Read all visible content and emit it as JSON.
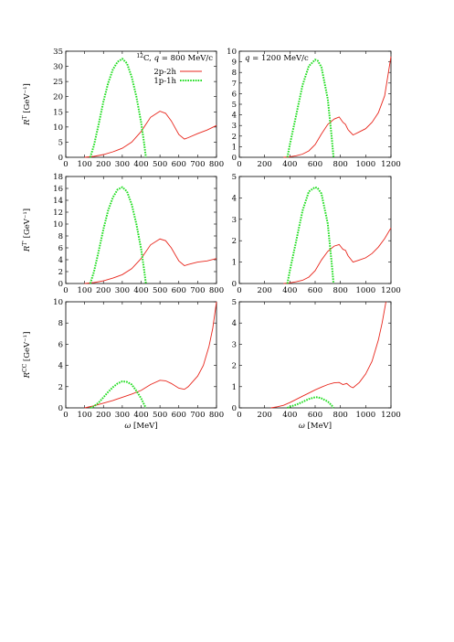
{
  "legend": {
    "entries": [
      {
        "label": "2p-2h",
        "color": "#e8261c",
        "style": "solid"
      },
      {
        "label": "1p-1h",
        "color": "#22dd22",
        "style": "dotted"
      }
    ]
  },
  "x_axis_label": "ω [MeV]",
  "chart_data": [
    {
      "type": "line",
      "panel": "top-left",
      "annotation": "¹²C, q = 800 MeV/c",
      "ylabel": "R^T [GeV⁻¹]",
      "xlim": [
        0,
        800
      ],
      "ylim": [
        0,
        35
      ],
      "xticks": [
        0,
        100,
        200,
        300,
        400,
        500,
        600,
        700,
        800
      ],
      "yticks": [
        0,
        5,
        10,
        15,
        20,
        25,
        30,
        35
      ],
      "series": [
        {
          "name": "2p-2h",
          "x": [
            100,
            150,
            200,
            250,
            300,
            350,
            400,
            450,
            500,
            530,
            560,
            600,
            630,
            650,
            700,
            750,
            800
          ],
          "y": [
            0,
            0.3,
            0.9,
            1.8,
            3.0,
            5.0,
            8.5,
            13.2,
            15.2,
            14.5,
            12.0,
            7.5,
            6.0,
            6.5,
            7.8,
            9.0,
            10.5
          ]
        },
        {
          "name": "1p-1h",
          "x": [
            130,
            150,
            175,
            200,
            225,
            250,
            275,
            300,
            325,
            350,
            375,
            400,
            415,
            425
          ],
          "y": [
            0,
            4.0,
            11.0,
            18.5,
            24.5,
            29.0,
            31.5,
            32.5,
            31.0,
            26.5,
            20.0,
            11.5,
            5.0,
            0
          ]
        }
      ]
    },
    {
      "type": "line",
      "panel": "top-right",
      "annotation": "q = 1200 MeV/c",
      "ylabel": "",
      "xlim": [
        0,
        1200
      ],
      "ylim": [
        0,
        10
      ],
      "xticks": [
        0,
        200,
        400,
        600,
        800,
        1000,
        1200
      ],
      "yticks": [
        0,
        1,
        2,
        3,
        4,
        5,
        6,
        7,
        8,
        9,
        10
      ],
      "series": [
        {
          "name": "2p-2h",
          "x": [
            350,
            400,
            450,
            500,
            550,
            600,
            650,
            700,
            750,
            790,
            820,
            840,
            860,
            900,
            950,
            1000,
            1050,
            1100,
            1150,
            1200
          ],
          "y": [
            0,
            0.05,
            0.15,
            0.3,
            0.6,
            1.2,
            2.2,
            3.1,
            3.6,
            3.8,
            3.3,
            3.1,
            2.6,
            2.1,
            2.4,
            2.7,
            3.3,
            4.2,
            5.8,
            9.5
          ]
        },
        {
          "name": "1p-1h",
          "x": [
            380,
            400,
            450,
            500,
            550,
            600,
            620,
            650,
            700,
            730,
            745
          ],
          "y": [
            0,
            1.2,
            4.0,
            6.8,
            8.6,
            9.2,
            9.1,
            8.5,
            5.5,
            2.0,
            0
          ]
        }
      ]
    },
    {
      "type": "line",
      "panel": "middle-left",
      "ylabel": "R^{T'} [GeV⁻¹]",
      "xlim": [
        0,
        800
      ],
      "ylim": [
        0,
        18
      ],
      "xticks": [
        0,
        100,
        200,
        300,
        400,
        500,
        600,
        700,
        800
      ],
      "yticks": [
        0,
        2,
        4,
        6,
        8,
        10,
        12,
        14,
        16,
        18
      ],
      "series": [
        {
          "name": "2p-2h",
          "x": [
            100,
            150,
            200,
            250,
            300,
            350,
            400,
            450,
            500,
            530,
            560,
            600,
            630,
            650,
            700,
            750,
            800
          ],
          "y": [
            0,
            0.15,
            0.45,
            0.9,
            1.5,
            2.5,
            4.2,
            6.5,
            7.5,
            7.2,
            6.0,
            3.8,
            3.0,
            3.2,
            3.6,
            3.8,
            4.2
          ]
        },
        {
          "name": "1p-1h",
          "x": [
            130,
            150,
            175,
            200,
            225,
            250,
            275,
            300,
            325,
            350,
            375,
            400,
            415,
            425
          ],
          "y": [
            0,
            2.0,
            5.5,
            9.2,
            12.3,
            14.5,
            15.8,
            16.2,
            15.5,
            13.3,
            10.0,
            5.8,
            2.5,
            0
          ]
        }
      ]
    },
    {
      "type": "line",
      "panel": "middle-right",
      "ylabel": "",
      "xlim": [
        0,
        1200
      ],
      "ylim": [
        0,
        5
      ],
      "xticks": [
        0,
        200,
        400,
        600,
        800,
        1000,
        1200
      ],
      "yticks": [
        0,
        1,
        2,
        3,
        4,
        5
      ],
      "series": [
        {
          "name": "2p-2h",
          "x": [
            350,
            400,
            450,
            500,
            550,
            600,
            650,
            700,
            750,
            790,
            820,
            840,
            860,
            900,
            950,
            1000,
            1050,
            1100,
            1150,
            1200
          ],
          "y": [
            0,
            0.03,
            0.08,
            0.15,
            0.3,
            0.6,
            1.1,
            1.5,
            1.75,
            1.82,
            1.6,
            1.55,
            1.3,
            1.0,
            1.1,
            1.2,
            1.4,
            1.7,
            2.1,
            2.6
          ]
        },
        {
          "name": "1p-1h",
          "x": [
            380,
            400,
            450,
            500,
            550,
            600,
            620,
            650,
            700,
            730,
            745
          ],
          "y": [
            0,
            0.6,
            2.0,
            3.4,
            4.3,
            4.5,
            4.45,
            4.2,
            2.8,
            1.0,
            0
          ]
        }
      ]
    },
    {
      "type": "line",
      "panel": "bottom-left",
      "ylabel": "R^{CC} [GeV⁻¹]",
      "xlabel": "ω [MeV]",
      "xlim": [
        0,
        800
      ],
      "ylim": [
        0,
        10
      ],
      "xticks": [
        0,
        100,
        200,
        300,
        400,
        500,
        600,
        700,
        800
      ],
      "yticks": [
        0,
        2,
        4,
        6,
        8,
        10
      ],
      "series": [
        {
          "name": "2p-2h",
          "x": [
            100,
            150,
            200,
            250,
            300,
            350,
            400,
            450,
            500,
            530,
            560,
            600,
            630,
            650,
            700,
            730,
            760,
            780,
            800
          ],
          "y": [
            0,
            0.2,
            0.45,
            0.7,
            1.0,
            1.3,
            1.65,
            2.2,
            2.6,
            2.55,
            2.3,
            1.85,
            1.75,
            2.0,
            3.0,
            4.0,
            5.8,
            7.5,
            10.0
          ]
        },
        {
          "name": "1p-1h",
          "x": [
            130,
            150,
            175,
            200,
            225,
            250,
            275,
            300,
            325,
            350,
            375,
            400,
            415,
            425
          ],
          "y": [
            0,
            0.15,
            0.5,
            1.0,
            1.5,
            1.95,
            2.3,
            2.5,
            2.45,
            2.2,
            1.6,
            0.9,
            0.35,
            0
          ]
        }
      ]
    },
    {
      "type": "line",
      "panel": "bottom-right",
      "ylabel": "",
      "xlabel": "ω [MeV]",
      "xlim": [
        0,
        1200
      ],
      "ylim": [
        0,
        5
      ],
      "xticks": [
        0,
        200,
        400,
        600,
        800,
        1000,
        1200
      ],
      "yticks": [
        0,
        1,
        2,
        3,
        4,
        5
      ],
      "series": [
        {
          "name": "2p-2h",
          "x": [
            250,
            300,
            350,
            400,
            450,
            500,
            550,
            600,
            650,
            700,
            750,
            790,
            820,
            850,
            880,
            900,
            950,
            1000,
            1050,
            1100,
            1130,
            1160
          ],
          "y": [
            0,
            0.05,
            0.12,
            0.25,
            0.4,
            0.55,
            0.7,
            0.85,
            0.98,
            1.1,
            1.18,
            1.2,
            1.1,
            1.15,
            1.0,
            0.95,
            1.2,
            1.6,
            2.2,
            3.2,
            4.0,
            5.0
          ]
        },
        {
          "name": "1p-1h",
          "x": [
            380,
            400,
            450,
            500,
            550,
            600,
            620,
            650,
            700,
            730,
            745
          ],
          "y": [
            0,
            0.05,
            0.15,
            0.28,
            0.42,
            0.5,
            0.5,
            0.45,
            0.3,
            0.12,
            0
          ]
        }
      ]
    }
  ]
}
